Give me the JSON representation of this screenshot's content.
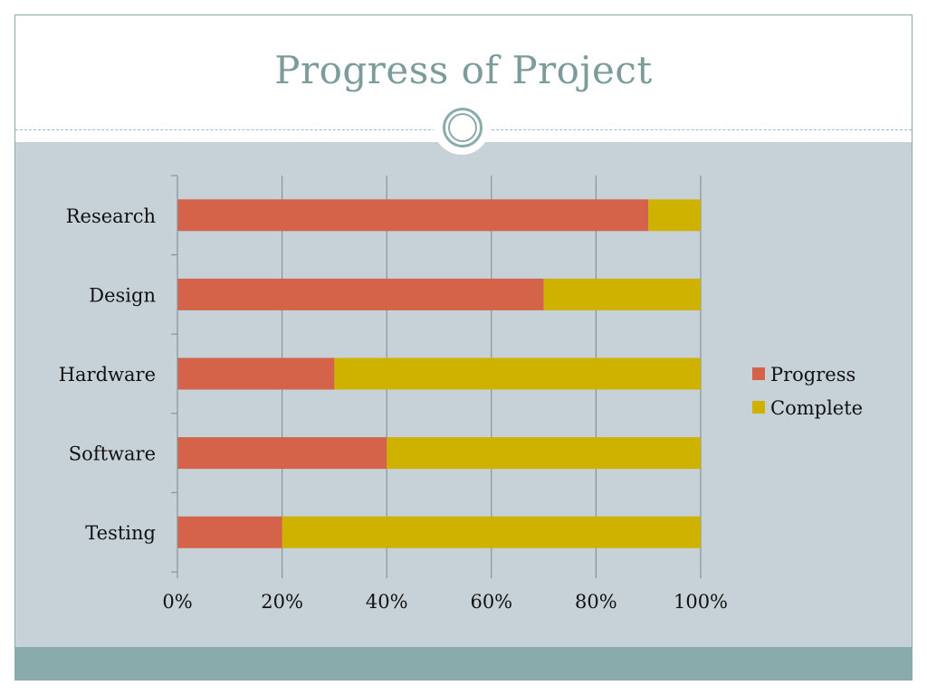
{
  "slide": {
    "title": "Progress of Project"
  },
  "colors": {
    "progress": "#d4634a",
    "complete": "#cfb200",
    "grid": "#8c9396",
    "content_bg": "#c6d2d8",
    "footer": "#8aabab",
    "title": "#7c9c9c"
  },
  "chart_data": {
    "type": "bar",
    "orientation": "horizontal",
    "stacked": true,
    "categories": [
      "Research",
      "Design",
      "Hardware",
      "Software",
      "Testing"
    ],
    "series": [
      {
        "name": "Progress",
        "values": [
          90,
          70,
          30,
          40,
          20
        ]
      },
      {
        "name": "Complete",
        "values": [
          10,
          30,
          70,
          60,
          80
        ]
      }
    ],
    "x_ticks": [
      "0%",
      "20%",
      "40%",
      "60%",
      "80%",
      "100%"
    ],
    "xlim": [
      0,
      100
    ],
    "grid": true,
    "legend": "right"
  }
}
